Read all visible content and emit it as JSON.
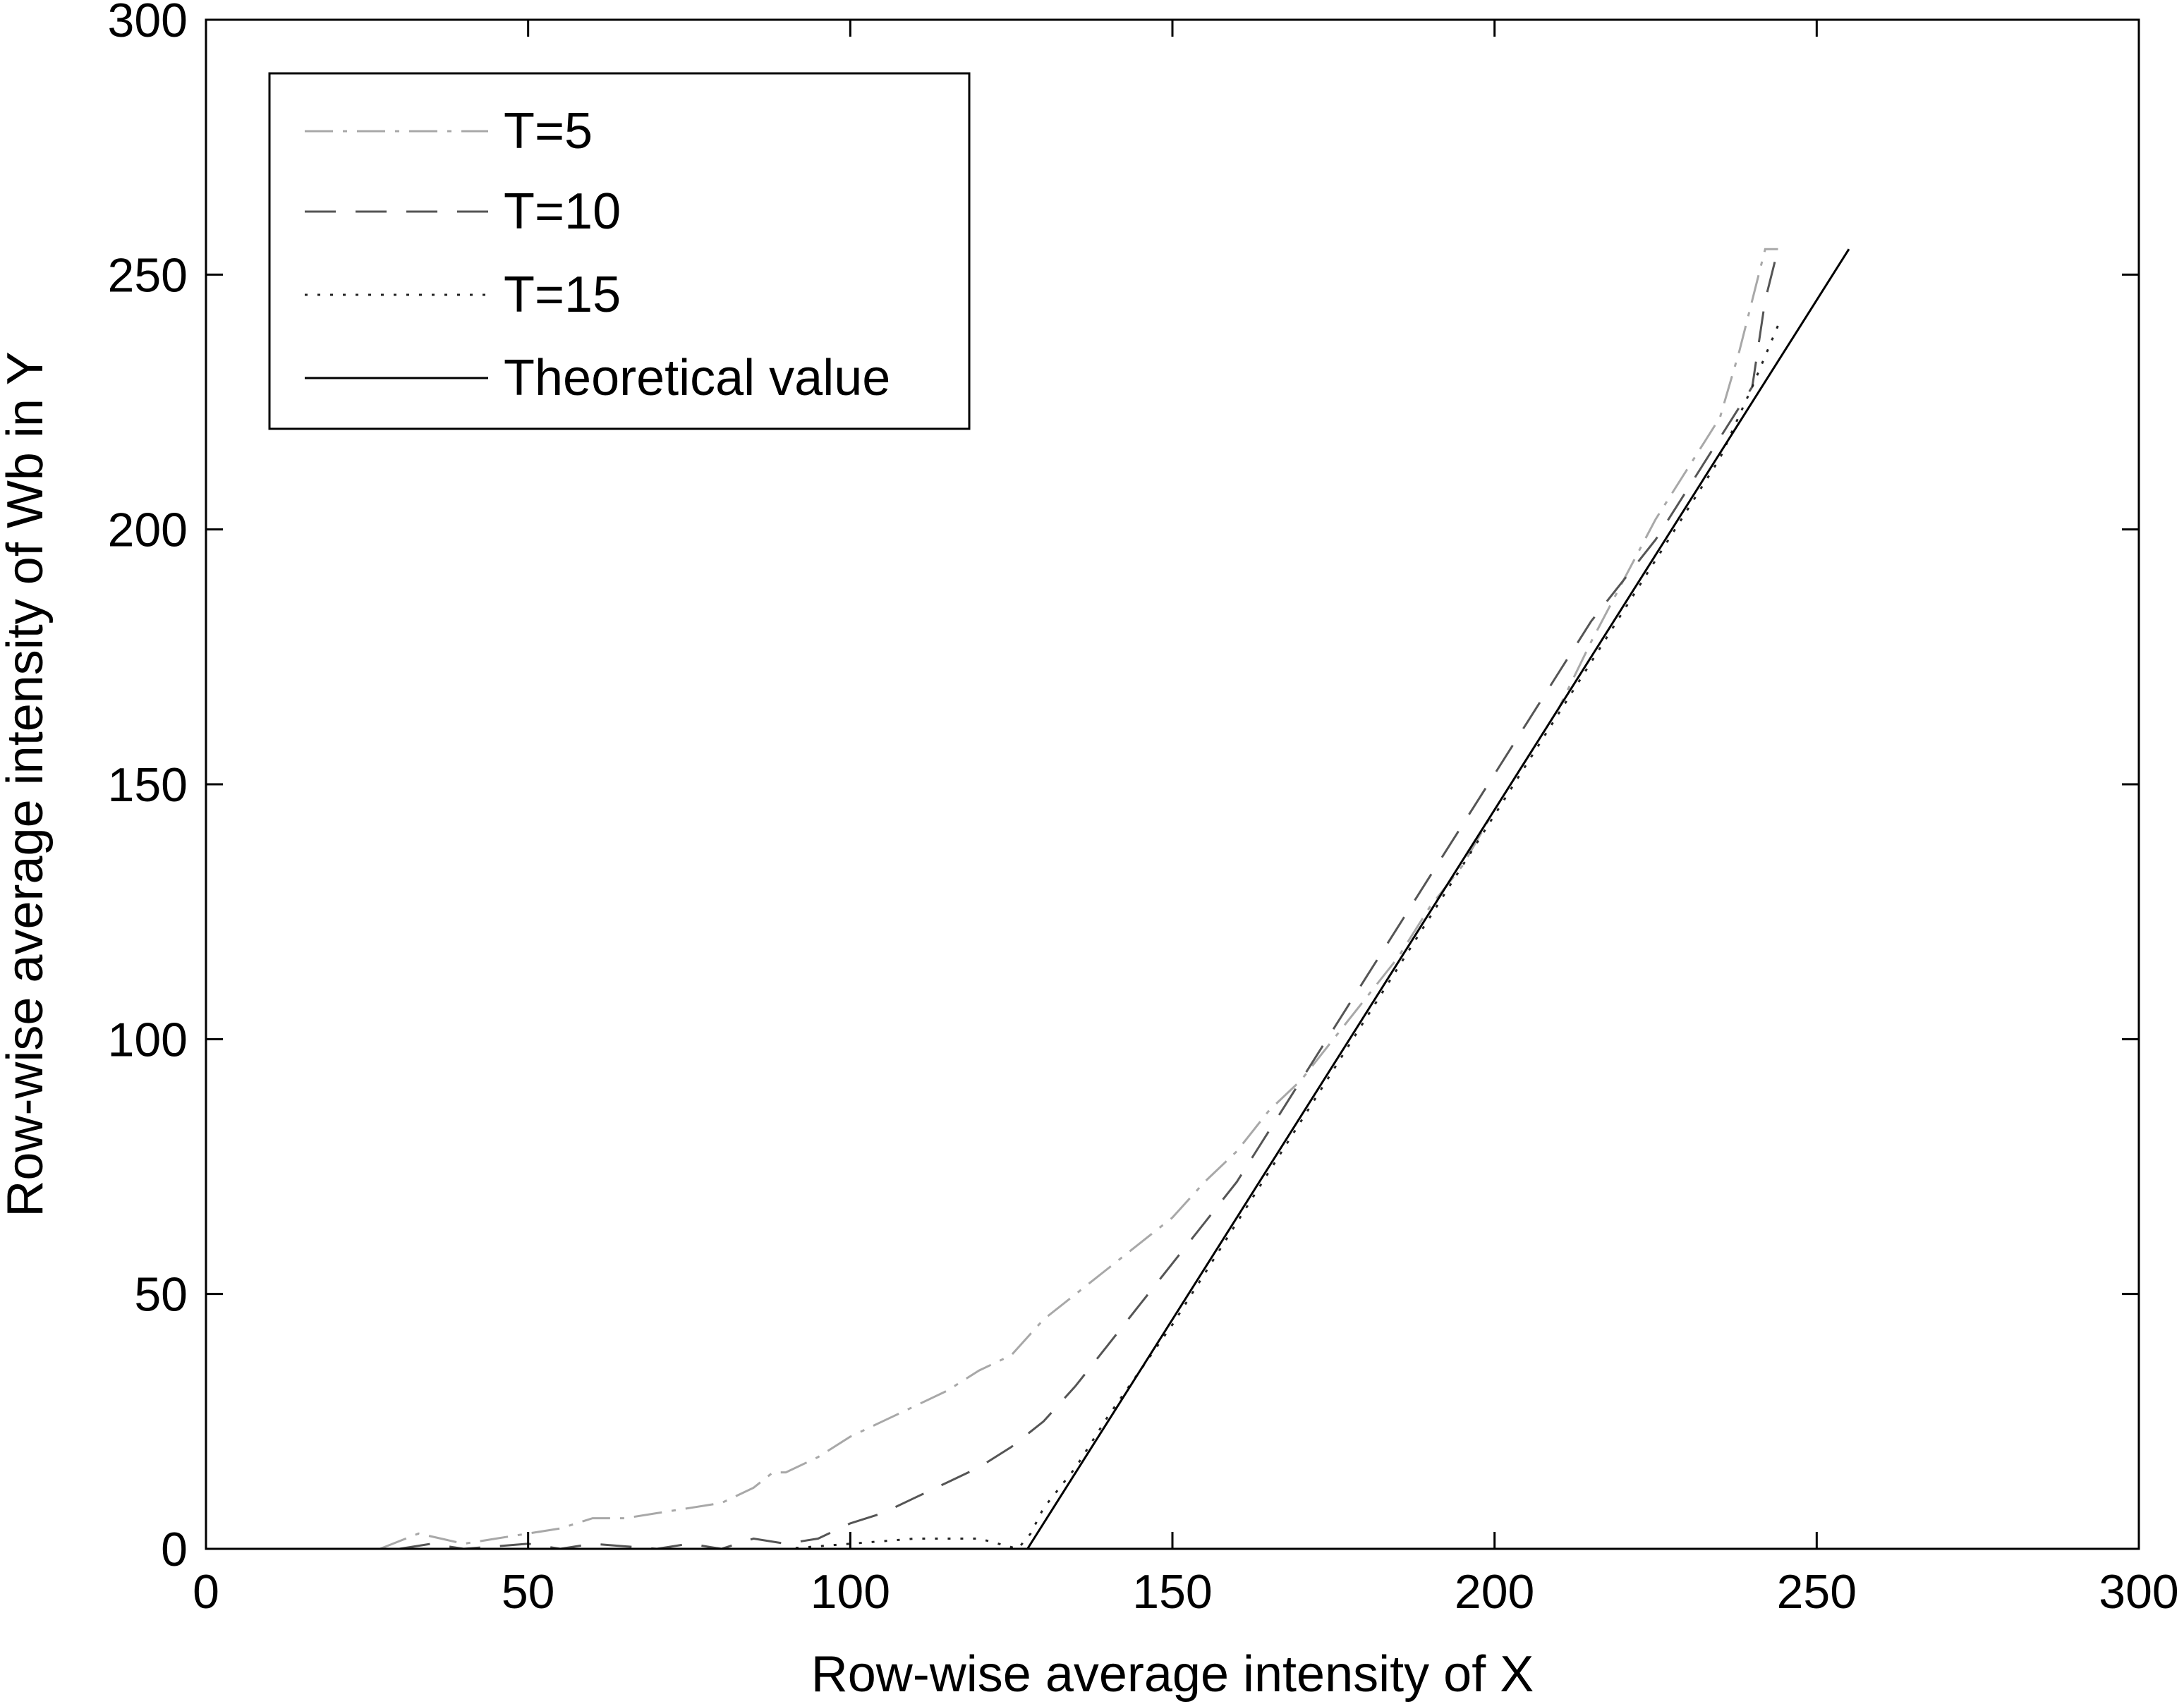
{
  "chart_data": {
    "type": "line",
    "title": "",
    "xlabel": "Row-wise average intensity of X",
    "ylabel": "Row-wise average intensity of Wb in Y",
    "xlim": [
      0,
      300
    ],
    "ylim": [
      0,
      300
    ],
    "xticks": [
      0,
      50,
      100,
      150,
      200,
      250,
      300
    ],
    "yticks": [
      0,
      50,
      100,
      150,
      200,
      250,
      300
    ],
    "xtick_labels": [
      "0",
      "50",
      "100",
      "150",
      "200",
      "250",
      "300"
    ],
    "ytick_labels": [
      "0",
      "50",
      "100",
      "150",
      "200",
      "250",
      "300"
    ],
    "grid": false,
    "legend_position": "top-left",
    "series": [
      {
        "name": "T=5",
        "style": "dash-dot",
        "color": "#a8a8a8",
        "x": [
          27,
          33,
          40,
          45,
          50,
          55,
          60,
          65,
          70,
          75,
          80,
          85,
          88,
          90,
          95,
          100,
          105,
          110,
          115,
          120,
          125,
          130,
          135,
          140,
          145,
          150,
          155,
          160,
          165,
          170,
          175,
          180,
          185,
          190,
          195,
          200,
          205,
          210,
          215,
          220,
          225,
          230,
          235,
          238,
          240,
          242,
          244
        ],
        "y": [
          0,
          3,
          1,
          2,
          3,
          4,
          6,
          6,
          7,
          8,
          9,
          12,
          15,
          15,
          18,
          22,
          25,
          28,
          31,
          35,
          38,
          45,
          50,
          55,
          60,
          65,
          72,
          78,
          86,
          92,
          100,
          108,
          116,
          126,
          134,
          145,
          155,
          165,
          178,
          190,
          202,
          212,
          222,
          235,
          245,
          255,
          255
        ]
      },
      {
        "name": "T=10",
        "style": "dashed",
        "color": "#555555",
        "x": [
          30,
          35,
          40,
          50,
          55,
          60,
          70,
          75,
          80,
          85,
          90,
          95,
          100,
          105,
          110,
          115,
          120,
          125,
          130,
          135,
          140,
          145,
          150,
          155,
          160,
          165,
          170,
          175,
          180,
          185,
          190,
          195,
          200,
          205,
          210,
          215,
          220,
          225,
          230,
          235,
          240,
          242,
          244
        ],
        "y": [
          0,
          1,
          0,
          1,
          0,
          1,
          0,
          1,
          0,
          2,
          1,
          2,
          5,
          7,
          10,
          13,
          16,
          20,
          25,
          32,
          40,
          48,
          56,
          64,
          72,
          82,
          92,
          102,
          112,
          122,
          132,
          142,
          152,
          162,
          172,
          182,
          190,
          198,
          208,
          218,
          228,
          245,
          255
        ]
      },
      {
        "name": "T=15",
        "style": "dotted",
        "color": "#222222",
        "x": [
          60,
          70,
          80,
          90,
          100,
          110,
          120,
          126,
          128,
          130,
          135,
          140,
          145,
          150,
          155,
          160,
          165,
          170,
          175,
          180,
          185,
          190,
          195,
          200,
          205,
          210,
          215,
          220,
          225,
          230,
          235,
          240,
          244
        ],
        "y": [
          0,
          0,
          0,
          0,
          1,
          2,
          2,
          0,
          3,
          8,
          16,
          26,
          35,
          44,
          54,
          64,
          74,
          84,
          94,
          104,
          114,
          124,
          134,
          144,
          154,
          164,
          174,
          184,
          194,
          204,
          214,
          228,
          240
        ]
      },
      {
        "name": "Theoretical value",
        "style": "solid",
        "color": "#000000",
        "x": [
          0,
          127.5,
          255,
          255
        ],
        "y": [
          0,
          0,
          255,
          255
        ]
      }
    ]
  }
}
